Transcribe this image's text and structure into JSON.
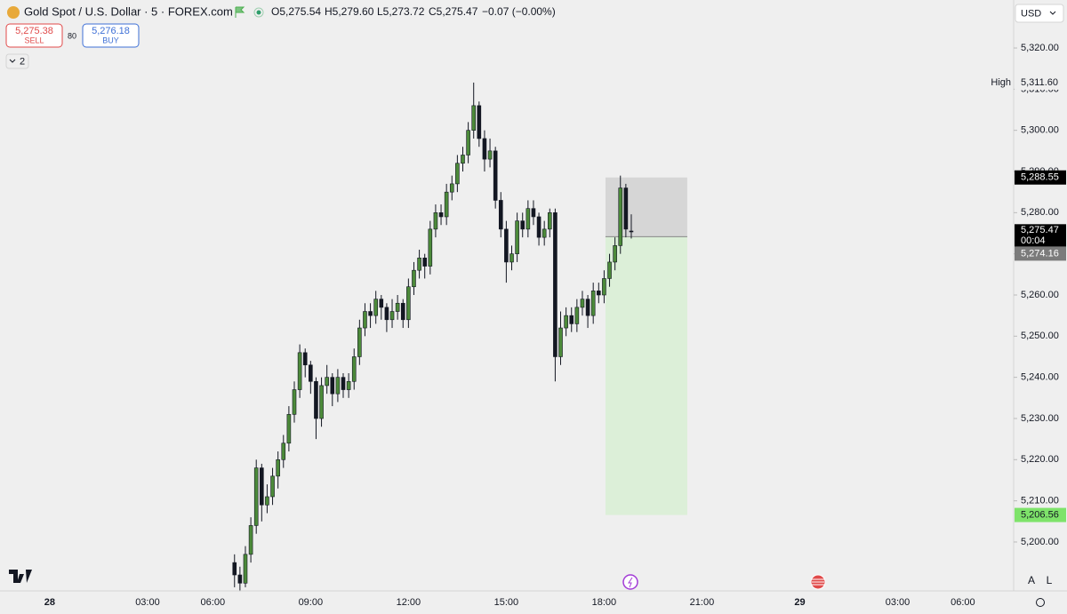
{
  "header": {
    "symbol": "Gold Spot / U.S. Dollar · 5 · FOREX.com",
    "ohlc": [
      "O5,275.54",
      "H5,279.60",
      "L5,273.72",
      "C5,275.47"
    ],
    "change": "−0.07 (−0.00%)"
  },
  "trade": {
    "sell_price": "5,275.38",
    "sell": "SELL",
    "spread": "80",
    "buy_price": "5,276.18",
    "buy": "BUY"
  },
  "indicators_count": "2",
  "currency": "USD",
  "scale_buttons": [
    "A",
    "L"
  ],
  "chart_data": {
    "type": "candlestick",
    "x": [
      68,
      70,
      72,
      74,
      76,
      78,
      80,
      82,
      84,
      86,
      88,
      90,
      92,
      94,
      96,
      98,
      100,
      102,
      104,
      106,
      108,
      110,
      112,
      114,
      116,
      118,
      120,
      122,
      124,
      126,
      128,
      130,
      132,
      134,
      136,
      138,
      140,
      142,
      144,
      146,
      148,
      150,
      152,
      154,
      156,
      158,
      160,
      162,
      164,
      166,
      168,
      170,
      172,
      174,
      176,
      178,
      180,
      182,
      184,
      186,
      188,
      190,
      192,
      194,
      196,
      198,
      200,
      202,
      204,
      206,
      208,
      210,
      212,
      214
    ],
    "open": [
      5195,
      5192,
      5190,
      5197,
      5204,
      5218,
      5209,
      5211,
      5216,
      5220,
      5224,
      5231,
      5237,
      5246,
      5243,
      5239,
      5230,
      5238,
      5240,
      5236,
      5240,
      5237,
      5239,
      5245,
      5252,
      5256,
      5255,
      5259,
      5257,
      5254,
      5256,
      5258,
      5254,
      5262,
      5266,
      5269,
      5267,
      5276,
      5280,
      5279,
      5285,
      5287,
      5292,
      5294,
      5300,
      5306,
      5298,
      5293,
      5295,
      5283,
      5276,
      5268,
      5270,
      5278,
      5276,
      5281,
      5279,
      5274,
      5276,
      5280,
      5245,
      5252,
      5255,
      5253,
      5257,
      5259,
      5255,
      5261,
      5260,
      5264,
      5268,
      5272,
      5286,
      5275.54
    ],
    "high": [
      5197,
      5194,
      5199,
      5206,
      5220,
      5219,
      5214,
      5218,
      5222,
      5226,
      5233,
      5239,
      5248,
      5247,
      5244,
      5240,
      5240,
      5243,
      5241,
      5242,
      5241,
      5241,
      5247,
      5254,
      5258,
      5258,
      5261,
      5260,
      5258,
      5259,
      5260,
      5259,
      5264,
      5268,
      5271,
      5270,
      5278,
      5282,
      5282,
      5287,
      5289,
      5294,
      5296,
      5302,
      5311.6,
      5307,
      5300,
      5298,
      5296,
      5285,
      5278,
      5272,
      5280,
      5280,
      5283,
      5283,
      5280,
      5278,
      5281,
      5281,
      5256,
      5257,
      5257,
      5259,
      5261,
      5260,
      5263,
      5263,
      5266,
      5270,
      5274,
      5289,
      5287,
      5279.6
    ],
    "low": [
      5189,
      5188,
      5189,
      5195,
      5202,
      5205,
      5207,
      5209,
      5213,
      5218,
      5222,
      5229,
      5235,
      5240,
      5236,
      5225,
      5228,
      5236,
      5233,
      5234,
      5235,
      5235,
      5237,
      5243,
      5250,
      5252,
      5253,
      5254,
      5251,
      5252,
      5254,
      5252,
      5252,
      5260,
      5264,
      5264,
      5265,
      5274,
      5277,
      5277,
      5283,
      5285,
      5290,
      5292,
      5298,
      5296,
      5290,
      5291,
      5281,
      5274,
      5263,
      5266,
      5268,
      5274,
      5274,
      5277,
      5272,
      5272,
      5274,
      5239,
      5243,
      5250,
      5251,
      5251,
      5255,
      5252,
      5253,
      5258,
      5258,
      5262,
      5266,
      5270,
      5274,
      5273.72
    ],
    "close": [
      5192,
      5190,
      5197,
      5204,
      5218,
      5209,
      5211,
      5216,
      5220,
      5224,
      5231,
      5237,
      5246,
      5243,
      5239,
      5230,
      5238,
      5240,
      5236,
      5240,
      5237,
      5239,
      5245,
      5252,
      5256,
      5255,
      5259,
      5257,
      5254,
      5256,
      5258,
      5254,
      5262,
      5266,
      5269,
      5267,
      5276,
      5280,
      5279,
      5285,
      5287,
      5292,
      5294,
      5300,
      5306,
      5298,
      5293,
      5295,
      5283,
      5276,
      5268,
      5270,
      5278,
      5276,
      5281,
      5279,
      5274,
      5276,
      5280,
      5245,
      5252,
      5255,
      5253,
      5257,
      5259,
      5255,
      5261,
      5260,
      5264,
      5268,
      5272,
      5286,
      5276,
      5275.47
    ],
    "up_color": "#4c8a3a",
    "down_color": "#131722",
    "xlim": [
      -18.3,
      354.7
    ],
    "xticks": [
      {
        "value": 0,
        "label": "28"
      },
      {
        "value": 36,
        "label": "03:00"
      },
      {
        "value": 60,
        "label": "06:00"
      },
      {
        "value": 96,
        "label": "09:00"
      },
      {
        "value": 132,
        "label": "12:00"
      },
      {
        "value": 168,
        "label": "15:00"
      },
      {
        "value": 204,
        "label": "18:00"
      },
      {
        "value": 240,
        "label": "21:00"
      },
      {
        "value": 276,
        "label": "29"
      },
      {
        "value": 312,
        "label": "03:00"
      },
      {
        "value": 336,
        "label": "06:00"
      }
    ],
    "ylim": [
      5188.12,
      5331.66
    ],
    "yticks": [
      {
        "value": 5200,
        "label": "5,200.00"
      },
      {
        "value": 5210,
        "label": "5,210.00"
      },
      {
        "value": 5220,
        "label": "5,220.00"
      },
      {
        "value": 5230,
        "label": "5,230.00"
      },
      {
        "value": 5240,
        "label": "5,240.00"
      },
      {
        "value": 5250,
        "label": "5,250.00"
      },
      {
        "value": 5260,
        "label": "5,260.00"
      },
      {
        "value": 5270,
        "label": "5,270.00"
      },
      {
        "value": 5280,
        "label": "5,280.00"
      },
      {
        "value": 5290,
        "label": "5,290.00"
      },
      {
        "value": 5300,
        "label": "5,300.00"
      },
      {
        "value": 5310,
        "label": "5,310.00"
      },
      {
        "value": 5320,
        "label": "5,320.00"
      }
    ],
    "high_marker": {
      "text": "High",
      "value": 5311.6,
      "label": "5,311.60"
    },
    "last_price": {
      "value": 5275.47,
      "label": "5,275.47",
      "countdown": "00:04"
    },
    "position": {
      "x_start": 204.5,
      "x_end": 234.6,
      "stop": {
        "value": 5288.55,
        "label": "5,288.55"
      },
      "entry": {
        "value": 5274.16,
        "label": "5,274.16"
      },
      "target": {
        "value": 5206.56,
        "label": "5,206.56"
      }
    }
  }
}
